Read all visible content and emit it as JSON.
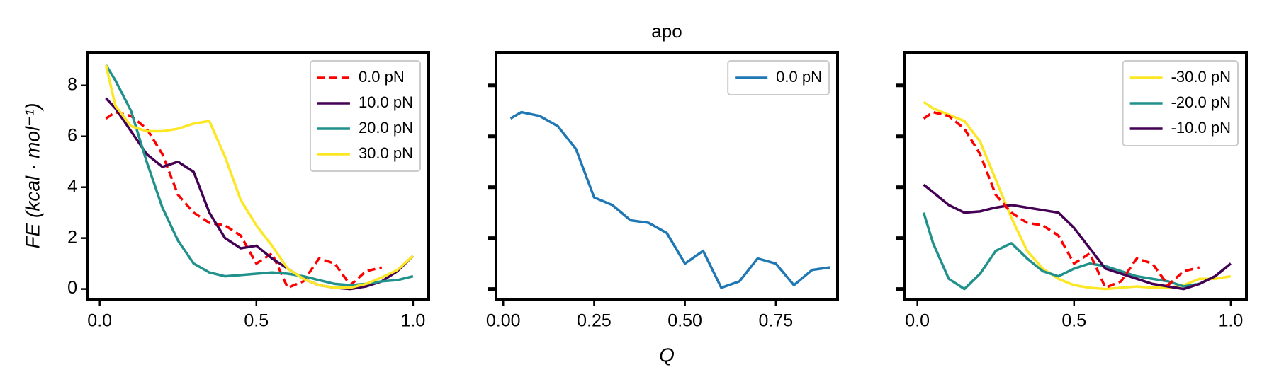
{
  "chart_data": [
    {
      "type": "line",
      "ylabel": "FE (kcal · mol⁻¹)",
      "x": [
        0.02,
        0.05,
        0.1,
        0.15,
        0.2,
        0.25,
        0.3,
        0.35,
        0.4,
        0.45,
        0.5,
        0.55,
        0.6,
        0.65,
        0.7,
        0.75,
        0.8,
        0.85,
        0.9,
        0.95,
        1.0
      ],
      "series": [
        {
          "name": "0.0 pN",
          "color": "#ff0000",
          "dashed": true,
          "values": [
            6.7,
            6.95,
            6.8,
            6.3,
            5.3,
            3.7,
            3.0,
            2.6,
            2.5,
            2.1,
            1.0,
            1.4,
            0.05,
            0.3,
            1.2,
            1.0,
            0.15,
            0.7,
            0.85,
            null,
            null
          ]
        },
        {
          "name": "10.0 pN",
          "color": "#440154",
          "values": [
            7.5,
            7.1,
            6.2,
            5.3,
            4.8,
            5.0,
            4.6,
            3.0,
            2.0,
            1.6,
            1.7,
            1.2,
            0.8,
            0.4,
            0.15,
            0.05,
            0.0,
            0.1,
            0.3,
            0.7,
            1.3
          ]
        },
        {
          "name": "20.0 pN",
          "color": "#21918c",
          "values": [
            8.8,
            8.2,
            7.0,
            5.0,
            3.2,
            1.9,
            1.0,
            0.65,
            0.5,
            0.55,
            0.6,
            0.65,
            0.6,
            0.5,
            0.35,
            0.2,
            0.15,
            0.2,
            0.3,
            0.35,
            0.5
          ]
        },
        {
          "name": "30.0 pN",
          "color": "#fde725",
          "values": [
            8.8,
            7.2,
            6.4,
            6.2,
            6.2,
            6.3,
            6.5,
            6.6,
            5.2,
            3.5,
            2.5,
            1.7,
            0.8,
            0.4,
            0.15,
            0.05,
            0.05,
            0.2,
            0.45,
            0.75,
            1.3
          ]
        }
      ],
      "xlim": [
        -0.04,
        1.05
      ],
      "ylim": [
        -0.4,
        9.3
      ],
      "xticks": [
        {
          "value": 0,
          "label": "0.0"
        },
        0.5,
        {
          "value": 1,
          "label": "1.0"
        }
      ],
      "yticks": [
        0,
        2,
        4,
        6,
        8
      ],
      "ytick_labels": true,
      "legend": "upper right"
    },
    {
      "type": "line",
      "title": "apo",
      "xlabel": "Q",
      "x": [
        0.02,
        0.05,
        0.1,
        0.15,
        0.2,
        0.25,
        0.3,
        0.35,
        0.4,
        0.45,
        0.5,
        0.55,
        0.6,
        0.65,
        0.7,
        0.75,
        0.8,
        0.85,
        0.9
      ],
      "series": [
        {
          "name": "0.0 pN",
          "color": "#1f77b4",
          "values": [
            6.7,
            6.95,
            6.8,
            6.4,
            5.5,
            3.6,
            3.3,
            2.7,
            2.6,
            2.2,
            1.0,
            1.5,
            0.05,
            0.3,
            1.2,
            1.0,
            0.15,
            0.75,
            0.85
          ]
        }
      ],
      "xlim": [
        -0.02,
        0.92
      ],
      "ylim": [
        -0.4,
        9.3
      ],
      "xticks": [
        {
          "value": 0,
          "label": "0.00"
        },
        0.25,
        {
          "value": 0.5,
          "label": "0.50"
        },
        0.75
      ],
      "yticks": [
        0,
        2,
        4,
        6,
        8
      ],
      "ytick_labels": false,
      "legend": "upper right"
    },
    {
      "type": "line",
      "x": [
        0.02,
        0.05,
        0.1,
        0.15,
        0.2,
        0.25,
        0.3,
        0.35,
        0.4,
        0.45,
        0.5,
        0.55,
        0.6,
        0.65,
        0.7,
        0.75,
        0.8,
        0.85,
        0.9,
        0.95,
        1.0
      ],
      "series": [
        {
          "name": "-30.0 pN",
          "color": "#fde725",
          "values": [
            7.35,
            7.1,
            6.85,
            6.6,
            5.8,
            4.3,
            2.8,
            1.5,
            0.8,
            0.4,
            0.15,
            0.05,
            0.0,
            0.05,
            0.1,
            0.05,
            0.05,
            0.15,
            0.4,
            0.4,
            0.5
          ]
        },
        {
          "name": "-20.0 pN",
          "color": "#21918c",
          "values": [
            3.0,
            1.8,
            0.4,
            0.0,
            0.6,
            1.5,
            1.8,
            1.2,
            0.7,
            0.5,
            0.8,
            1.0,
            0.9,
            0.7,
            0.5,
            0.4,
            0.3,
            0.1,
            0.2,
            0.5,
            1.0
          ]
        },
        {
          "name": "-10.0 pN",
          "color": "#440154",
          "values": [
            4.1,
            3.8,
            3.3,
            3.0,
            3.05,
            3.2,
            3.3,
            3.2,
            3.1,
            3.0,
            2.4,
            1.6,
            0.8,
            0.6,
            0.4,
            0.2,
            0.1,
            0.0,
            0.2,
            0.5,
            1.0
          ]
        },
        {
          "color": "#ff0000",
          "dashed": true,
          "values": [
            6.7,
            6.95,
            6.8,
            6.3,
            5.3,
            3.7,
            3.0,
            2.6,
            2.5,
            2.1,
            1.0,
            1.4,
            0.05,
            0.3,
            1.2,
            1.0,
            0.15,
            0.7,
            0.85,
            null,
            null
          ]
        }
      ],
      "xlim": [
        -0.04,
        1.05
      ],
      "ylim": [
        -0.4,
        9.3
      ],
      "xticks": [
        {
          "value": 0,
          "label": "0.0"
        },
        0.5,
        {
          "value": 1,
          "label": "1.0"
        }
      ],
      "yticks": [
        0,
        2,
        4,
        6,
        8
      ],
      "ytick_labels": false,
      "legend": "upper right"
    }
  ]
}
